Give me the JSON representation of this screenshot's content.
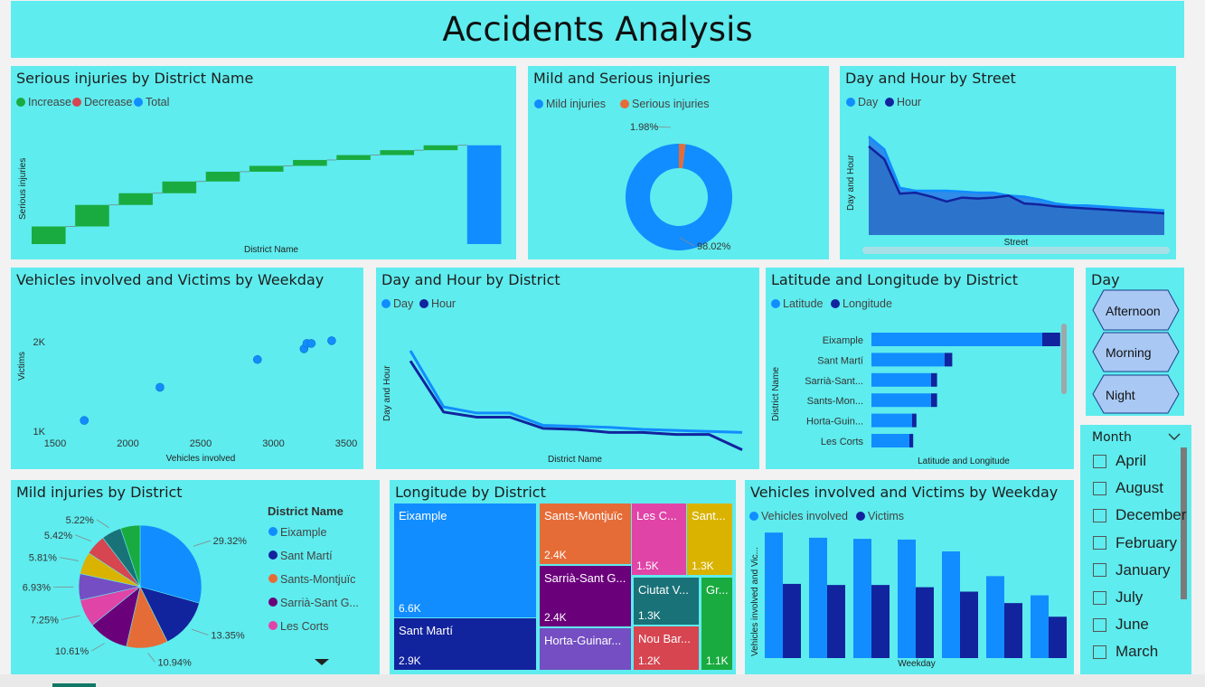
{
  "title": "Accidents Analysis",
  "cards": {
    "waterfall": {
      "title": "Serious injuries by District Name",
      "legend": [
        {
          "label": "Increase",
          "color": "#1aab40"
        },
        {
          "label": "Decrease",
          "color": "#d64550"
        },
        {
          "label": "Total",
          "color": "#118dff"
        }
      ],
      "xlabel": "District Name",
      "ylabel": "Serious injuries"
    },
    "donut": {
      "title": "Mild and Serious injuries",
      "legend": [
        {
          "label": "Mild injuries",
          "color": "#118dff"
        },
        {
          "label": "Serious injuries",
          "color": "#e66c37"
        }
      ],
      "label_small": "1.98%",
      "label_big": "98.02%"
    },
    "area_street": {
      "title": "Day and Hour by Street",
      "legend": [
        {
          "label": "Day",
          "color": "#118dff"
        },
        {
          "label": "Hour",
          "color": "#12239e"
        }
      ],
      "xlabel": "Street",
      "ylabel": "Day and Hour"
    },
    "scatter": {
      "title": "Vehicles involved and Victims by Weekday",
      "xlabel": "Vehicles involved",
      "ylabel": "Victims"
    },
    "line_district": {
      "title": "Day and Hour by District",
      "legend": [
        {
          "label": "Day",
          "color": "#118dff"
        },
        {
          "label": "Hour",
          "color": "#12239e"
        }
      ],
      "xlabel": "District Name",
      "ylabel": "Day and Hour"
    },
    "hbar": {
      "title": "Latitude and Longitude by District",
      "legend": [
        {
          "label": "Latitude",
          "color": "#118dff"
        },
        {
          "label": "Longitude",
          "color": "#12239e"
        }
      ],
      "xlabel": "Latitude and Longitude",
      "ylabel": "District Name"
    },
    "slicer_day": {
      "title": "Day",
      "options": [
        "Afternoon",
        "Morning",
        "Night"
      ]
    },
    "pie": {
      "title": "Mild injuries by District",
      "legend_title": "District Name",
      "legend": [
        {
          "label": "Eixample",
          "color": "#118dff"
        },
        {
          "label": "Sant Martí",
          "color": "#12239e"
        },
        {
          "label": "Sants-Montjuïc",
          "color": "#e66c37"
        },
        {
          "label": "Sarrià-Sant G...",
          "color": "#6b007b"
        },
        {
          "label": "Les Corts",
          "color": "#e044a7"
        }
      ]
    },
    "treemap": {
      "title": "Longitude by District"
    },
    "columns": {
      "title": "Vehicles involved and Victims by Weekday",
      "legend": [
        {
          "label": "Vehicles involved",
          "color": "#118dff"
        },
        {
          "label": "Victims",
          "color": "#12239e"
        }
      ],
      "xlabel": "Weekday",
      "ylabel": "Vehicles involved and Vic..."
    },
    "slicer_month": {
      "title": "Month",
      "options": [
        "April",
        "August",
        "December",
        "February",
        "January",
        "July",
        "June",
        "March"
      ]
    }
  },
  "chart_data": [
    {
      "type": "bar",
      "subtype": "waterfall",
      "title": "Serious injuries by District Name",
      "xlabel": "District Name",
      "ylabel": "Serious injuries",
      "steps": [
        18,
        22,
        12,
        12,
        10,
        6,
        6,
        5,
        5,
        5
      ],
      "total": 101,
      "ylim": [
        0,
        110
      ]
    },
    {
      "type": "pie",
      "subtype": "donut",
      "title": "Mild and Serious injuries",
      "categories": [
        "Mild injuries",
        "Serious injuries"
      ],
      "values": [
        98.02,
        1.98
      ]
    },
    {
      "type": "area",
      "title": "Day and Hour by Street",
      "xlabel": "Street",
      "ylabel": "Day and Hour",
      "series": [
        {
          "name": "Day",
          "values": [
            100,
            87,
            48,
            45,
            45,
            45,
            44,
            43,
            43,
            40,
            39,
            36,
            32,
            30,
            30,
            29,
            28,
            27,
            26,
            25
          ]
        },
        {
          "name": "Hour",
          "values": [
            90,
            77,
            42,
            43,
            39,
            34,
            38,
            37,
            38,
            40,
            32,
            31,
            29,
            28,
            27,
            26,
            25,
            24,
            23,
            22
          ]
        }
      ]
    },
    {
      "type": "scatter",
      "title": "Vehicles involved and Victims by Weekday",
      "xlabel": "Vehicles involved",
      "ylabel": "Victims",
      "x": [
        1700,
        2220,
        2890,
        3210,
        3230,
        3260,
        3400
      ],
      "y": [
        1120,
        1490,
        1800,
        1920,
        1980,
        1980,
        2010
      ],
      "xlim": [
        1500,
        3500
      ],
      "ylim": [
        1000,
        2100
      ],
      "xticks": [
        "1500",
        "2000",
        "2500",
        "3000",
        "3500"
      ],
      "yticks": [
        "1K",
        "2K"
      ]
    },
    {
      "type": "line",
      "title": "Day and Hour by District",
      "xlabel": "District Name",
      "ylabel": "Day and Hour",
      "series": [
        {
          "name": "Day",
          "values": [
            100,
            45,
            39,
            39,
            27,
            26,
            25,
            23,
            22,
            21,
            20
          ]
        },
        {
          "name": "Hour",
          "values": [
            90,
            40,
            35,
            35,
            24,
            23,
            20,
            20,
            18,
            18,
            3
          ]
        }
      ]
    },
    {
      "type": "bar",
      "orientation": "horizontal",
      "title": "Latitude and Longitude by District",
      "xlabel": "Latitude and Longitude",
      "ylabel": "District Name",
      "categories": [
        "Eixample",
        "Sant Martí",
        "Sarrià-Sant...",
        "Sants-Mon...",
        "Horta-Guin...",
        "Les Corts"
      ],
      "series": [
        {
          "name": "Latitude",
          "values": [
            6300,
            2700,
            2200,
            2200,
            1500,
            1400
          ]
        },
        {
          "name": "Longitude",
          "values": [
            330,
            140,
            110,
            110,
            80,
            70
          ]
        }
      ]
    },
    {
      "type": "pie",
      "title": "Mild injuries by District",
      "categories": [
        "Eixample",
        "Sant Martí",
        "Sants-Montjuïc",
        "Sarrià-Sant G...",
        "Les Corts",
        "",
        "",
        "",
        "",
        ""
      ],
      "values": [
        29.32,
        13.35,
        10.94,
        10.61,
        7.25,
        6.93,
        5.81,
        5.42,
        5.22,
        5.15
      ],
      "labels": [
        "29.32%",
        "13.35%",
        "10.94%",
        "10.61%",
        "7.25%",
        "6.93%",
        "5.81%",
        "5.42%",
        "5.22%",
        ""
      ],
      "colors": [
        "#118dff",
        "#12239e",
        "#e66c37",
        "#6b007b",
        "#e044a7",
        "#744ec2",
        "#d9b300",
        "#d64550",
        "#197278",
        "#1aab40"
      ]
    },
    {
      "type": "treemap",
      "title": "Longitude by District",
      "items": [
        {
          "label": "Eixample",
          "value": "6.6K",
          "color": "#118dff"
        },
        {
          "label": "Sant Martí",
          "value": "2.9K",
          "color": "#12239e"
        },
        {
          "label": "Sants-Montjuïc",
          "value": "2.4K",
          "color": "#e66c37"
        },
        {
          "label": "Sarrià-Sant G...",
          "value": "2.4K",
          "color": "#6b007b"
        },
        {
          "label": "Horta-Guinar...",
          "value": "",
          "color": "#744ec2"
        },
        {
          "label": "Les C...",
          "value": "1.5K",
          "color": "#e044a7"
        },
        {
          "label": "Sant...",
          "value": "1.3K",
          "color": "#d9b300"
        },
        {
          "label": "Ciutat V...",
          "value": "1.3K",
          "color": "#197278"
        },
        {
          "label": "Gr...",
          "value": "1.1K",
          "color": "#1aab40"
        },
        {
          "label": "Nou Bar...",
          "value": "1.2K",
          "color": "#d64550"
        }
      ]
    },
    {
      "type": "bar",
      "title": "Vehicles involved and Victims by Weekday",
      "xlabel": "Weekday",
      "ylabel": "Vehicles involved and Vic...",
      "categories": [
        "",
        "",
        "",
        "",
        "",
        "",
        ""
      ],
      "series": [
        {
          "name": "Vehicles involved",
          "values": [
            3400,
            3260,
            3230,
            3210,
            2890,
            2220,
            1700
          ]
        },
        {
          "name": "Victims",
          "values": [
            2010,
            1980,
            1980,
            1920,
            1800,
            1490,
            1120
          ]
        }
      ],
      "ylim": [
        0,
        3600
      ]
    }
  ]
}
